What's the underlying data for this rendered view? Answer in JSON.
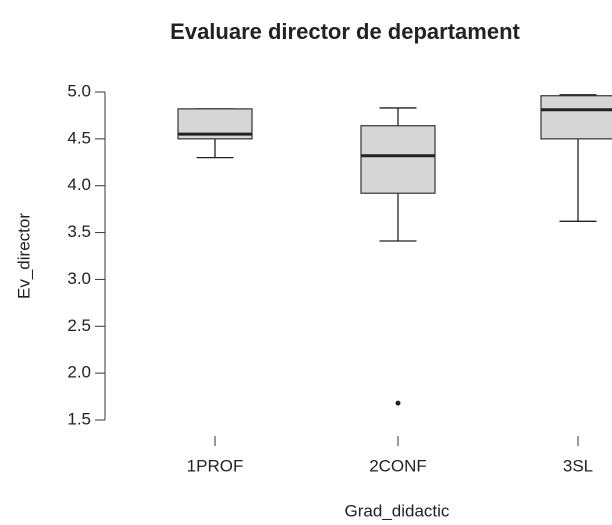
{
  "chart_data": {
    "type": "boxplot",
    "title": "Evaluare director de departament",
    "x_label": "Grad_didactic",
    "y_label": "Ev_director",
    "categories": [
      "1PROF",
      "2CONF",
      "3SL"
    ],
    "boxes": [
      {
        "whisker_low": 4.3,
        "q1": 4.5,
        "median": 4.55,
        "q3": 4.82,
        "whisker_high": 4.82,
        "outliers": []
      },
      {
        "whisker_low": 3.41,
        "q1": 3.92,
        "median": 4.32,
        "q3": 4.64,
        "whisker_high": 4.83,
        "outliers": [
          1.68
        ]
      },
      {
        "whisker_low": 3.62,
        "q1": 4.5,
        "median": 4.81,
        "q3": 4.96,
        "whisker_high": 4.97,
        "outliers": []
      }
    ],
    "color": "#d6d6d6",
    "ylim": [
      1.5,
      5.0
    ],
    "yticks": [
      {
        "value": 1.5,
        "label": "1.5"
      },
      {
        "value": 2,
        "label": "2.0"
      },
      {
        "value": 2.5,
        "label": "2.5"
      },
      {
        "value": 3,
        "label": "3.0"
      },
      {
        "value": 3.5,
        "label": "3.5"
      },
      {
        "value": 4,
        "label": "4.0"
      },
      {
        "value": 4.5,
        "label": "4.5"
      },
      {
        "value": 5,
        "label": "5.0"
      }
    ]
  }
}
